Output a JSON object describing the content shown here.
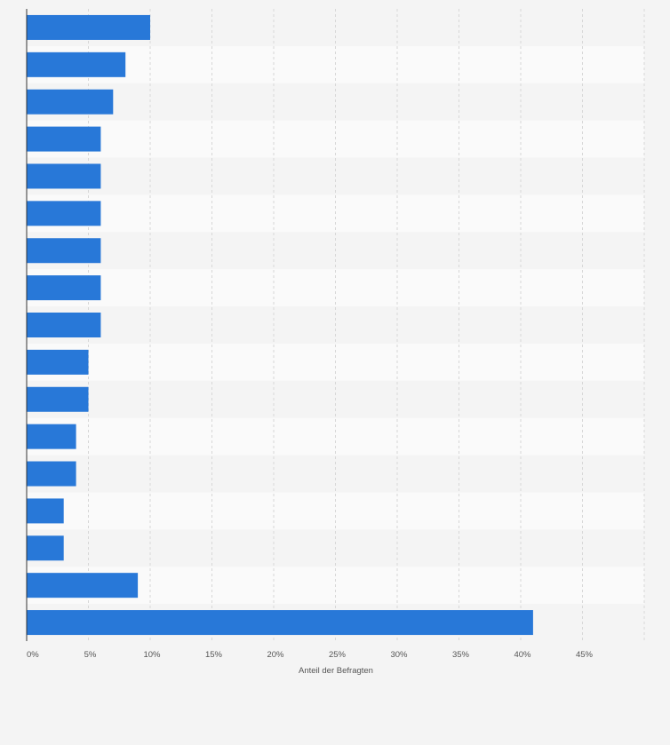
{
  "chart_data": {
    "type": "bar",
    "orientation": "horizontal",
    "categories": [
      "",
      "",
      "",
      "",
      "",
      "",
      "",
      "",
      "",
      "",
      "",
      "",
      "",
      "",
      "",
      "",
      ""
    ],
    "values": [
      10,
      8,
      7,
      6,
      6,
      6,
      6,
      6,
      6,
      5,
      5,
      4,
      4,
      3,
      3,
      9,
      41
    ],
    "xlabel": "Anteil der Befragten",
    "ylabel": "",
    "xlim": [
      0,
      50
    ],
    "xticks": [
      "0%",
      "5%",
      "10%",
      "15%",
      "20%",
      "25%",
      "30%",
      "35%",
      "40%",
      "45%"
    ],
    "grid": true,
    "colors": {
      "bar": "#2878d8",
      "band_light": "#fafafa",
      "band_dark": "#f4f4f4",
      "grid": "#d7d7d7",
      "axis": "#333333"
    }
  }
}
